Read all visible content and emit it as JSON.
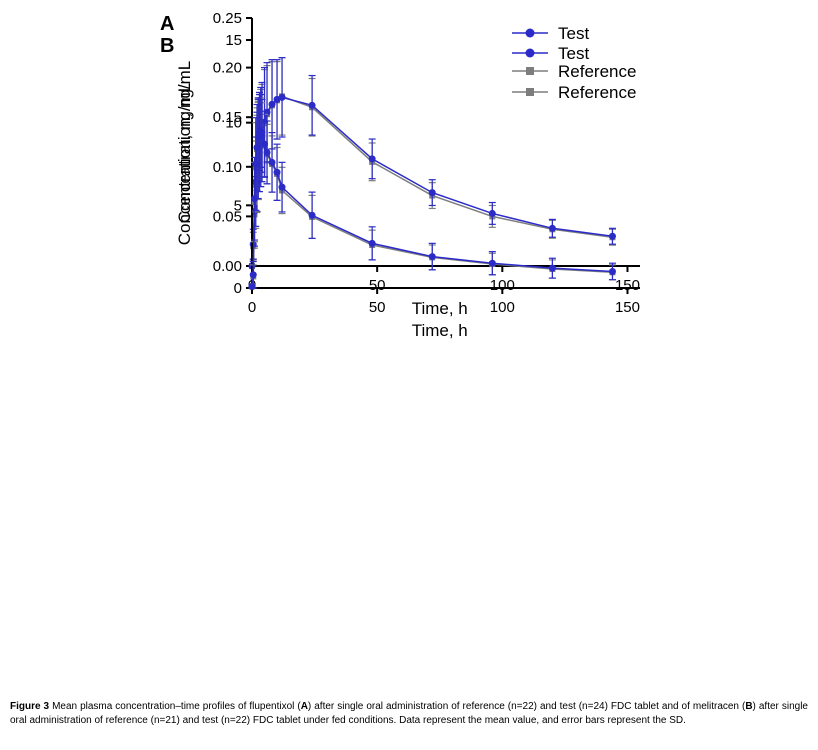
{
  "figure": {
    "caption_segments": [
      {
        "text": "Figure 3",
        "bold": true
      },
      {
        "text": " Mean plasma concentration–time profiles of flupentixol (",
        "bold": false
      },
      {
        "text": "A",
        "bold": true
      },
      {
        "text": ") after single oral administration of reference (n=22) and test (n=24) FDC tablet and of melitracen (",
        "bold": false
      },
      {
        "text": "B",
        "bold": true
      },
      {
        "text": ") after single oral administration of reference (n=21) and test (n=22) FDC tablet under fed conditions. Data represent the mean value, and error bars represent the SD.",
        "bold": false
      }
    ]
  },
  "colors": {
    "test": "#2b2bc8",
    "reference": "#7d7d7d",
    "axis": "#000000"
  },
  "chart_data": [
    {
      "type": "line",
      "panel": "A",
      "title": "",
      "xlabel": "Time, h",
      "ylabel": "Concentration, ng/mL",
      "xlim": [
        0,
        155
      ],
      "ylim": [
        0,
        0.25
      ],
      "xticks": [
        0,
        50,
        100,
        150
      ],
      "yticks": [
        0,
        0.05,
        0.1,
        0.15,
        0.2,
        0.25
      ],
      "ytick_decimals": 2,
      "grid": false,
      "legend_position": "top-right",
      "x": [
        0,
        0.5,
        1,
        1.5,
        2,
        2.5,
        3,
        3.5,
        4,
        5,
        6,
        8,
        10,
        12,
        24,
        48,
        72,
        96,
        120,
        144
      ],
      "series": [
        {
          "name": "Test",
          "marker": "circle",
          "color_key": "test",
          "values": [
            0,
            0.022,
            0.055,
            0.085,
            0.105,
            0.118,
            0.125,
            0.13,
            0.135,
            0.145,
            0.155,
            0.163,
            0.168,
            0.17,
            0.162,
            0.108,
            0.074,
            0.053,
            0.038,
            0.03
          ],
          "sd": [
            0,
            0.015,
            0.035,
            0.045,
            0.05,
            0.05,
            0.05,
            0.05,
            0.05,
            0.055,
            0.05,
            0.045,
            0.04,
            0.04,
            0.03,
            0.02,
            0.013,
            0.011,
            0.009,
            0.008
          ]
        },
        {
          "name": "Reference",
          "marker": "square",
          "color_key": "reference",
          "values": [
            0,
            0.02,
            0.052,
            0.082,
            0.103,
            0.116,
            0.124,
            0.129,
            0.134,
            0.144,
            0.153,
            0.162,
            0.167,
            0.171,
            0.16,
            0.105,
            0.071,
            0.05,
            0.037,
            0.029
          ],
          "sd": [
            0,
            0.014,
            0.034,
            0.044,
            0.049,
            0.049,
            0.049,
            0.049,
            0.049,
            0.054,
            0.049,
            0.044,
            0.039,
            0.039,
            0.029,
            0.019,
            0.013,
            0.011,
            0.009,
            0.008
          ]
        }
      ]
    },
    {
      "type": "line",
      "panel": "B",
      "title": "",
      "xlabel": "Time, h",
      "ylabel": "Concentration, ng/mL",
      "xlim": [
        0,
        155
      ],
      "ylim": [
        0,
        15
      ],
      "xticks": [
        0,
        50,
        100,
        150
      ],
      "yticks": [
        0,
        5,
        10,
        15
      ],
      "ytick_decimals": 0,
      "grid": false,
      "legend_position": "top-right",
      "x": [
        0,
        0.5,
        1,
        1.5,
        2,
        2.5,
        3,
        3.5,
        4,
        5,
        6,
        8,
        10,
        12,
        24,
        48,
        72,
        96,
        120,
        144
      ],
      "series": [
        {
          "name": "Test",
          "marker": "circle",
          "color_key": "test",
          "values": [
            0.1,
            0.8,
            5.4,
            7.5,
            8.5,
            9.1,
            9.4,
            9.5,
            9.2,
            8.7,
            8.2,
            7.6,
            7.0,
            6.1,
            4.4,
            2.7,
            1.9,
            1.5,
            1.2,
            1.0
          ],
          "sd": [
            0.1,
            0.8,
            2.5,
            2.8,
            2.6,
            2.4,
            2.3,
            2.2,
            2.2,
            2.0,
            1.9,
            1.8,
            1.7,
            1.5,
            1.4,
            1.0,
            0.8,
            0.7,
            0.6,
            0.5
          ]
        },
        {
          "name": "Reference",
          "marker": "square",
          "color_key": "reference",
          "values": [
            0.1,
            0.7,
            5.2,
            7.3,
            8.4,
            9.0,
            9.3,
            9.4,
            9.1,
            8.6,
            8.1,
            7.5,
            6.9,
            5.9,
            4.3,
            2.6,
            1.85,
            1.45,
            1.15,
            0.95
          ],
          "sd": [
            0.1,
            0.7,
            2.4,
            2.7,
            2.5,
            2.3,
            2.2,
            2.1,
            2.1,
            1.9,
            1.8,
            1.7,
            1.6,
            1.4,
            1.3,
            0.9,
            0.75,
            0.65,
            0.55,
            0.45
          ]
        }
      ]
    }
  ]
}
